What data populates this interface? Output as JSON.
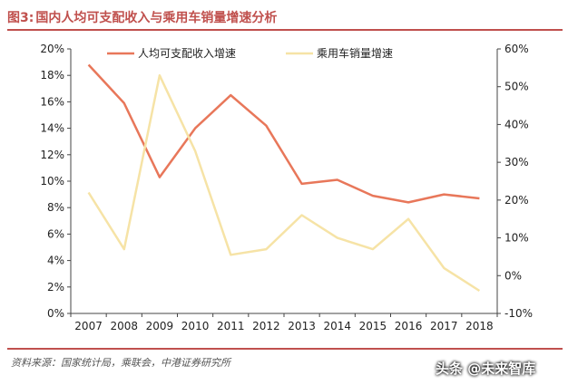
{
  "figure": {
    "label": "图3:",
    "title": "国内人均可支配收入与乘用车销量增速分析"
  },
  "source": "资料来源：国家统计局，乘联会，中港证券研究所",
  "watermark": "头条 @未来智库",
  "colors": {
    "income": "#e8775a",
    "car": "#f6e3a6",
    "accent": "#c0504d"
  },
  "chart_data": {
    "type": "line",
    "x": [
      "2007",
      "2008",
      "2009",
      "2010",
      "2011",
      "2012",
      "2013",
      "2014",
      "2015",
      "2016",
      "2017",
      "2018"
    ],
    "series": [
      {
        "name": "人均可支配收入增速",
        "axis": "left",
        "values": [
          18.8,
          15.9,
          10.3,
          14.0,
          16.5,
          14.2,
          9.8,
          10.1,
          8.9,
          8.4,
          9.0,
          8.7
        ]
      },
      {
        "name": "乘用车销量增速",
        "axis": "right",
        "values": [
          22,
          7,
          53,
          33,
          5.5,
          7,
          16,
          10,
          7,
          15,
          2,
          -4
        ]
      }
    ],
    "y_left": {
      "min": 0,
      "max": 20,
      "step": 2,
      "ticks": [
        "0%",
        "2%",
        "4%",
        "6%",
        "8%",
        "10%",
        "12%",
        "14%",
        "16%",
        "18%",
        "20%"
      ]
    },
    "y_right": {
      "min": -10,
      "max": 60,
      "step": 10,
      "ticks": [
        "-10%",
        "0%",
        "10%",
        "20%",
        "30%",
        "40%",
        "50%",
        "60%"
      ]
    },
    "grid": false,
    "legend": "top"
  }
}
